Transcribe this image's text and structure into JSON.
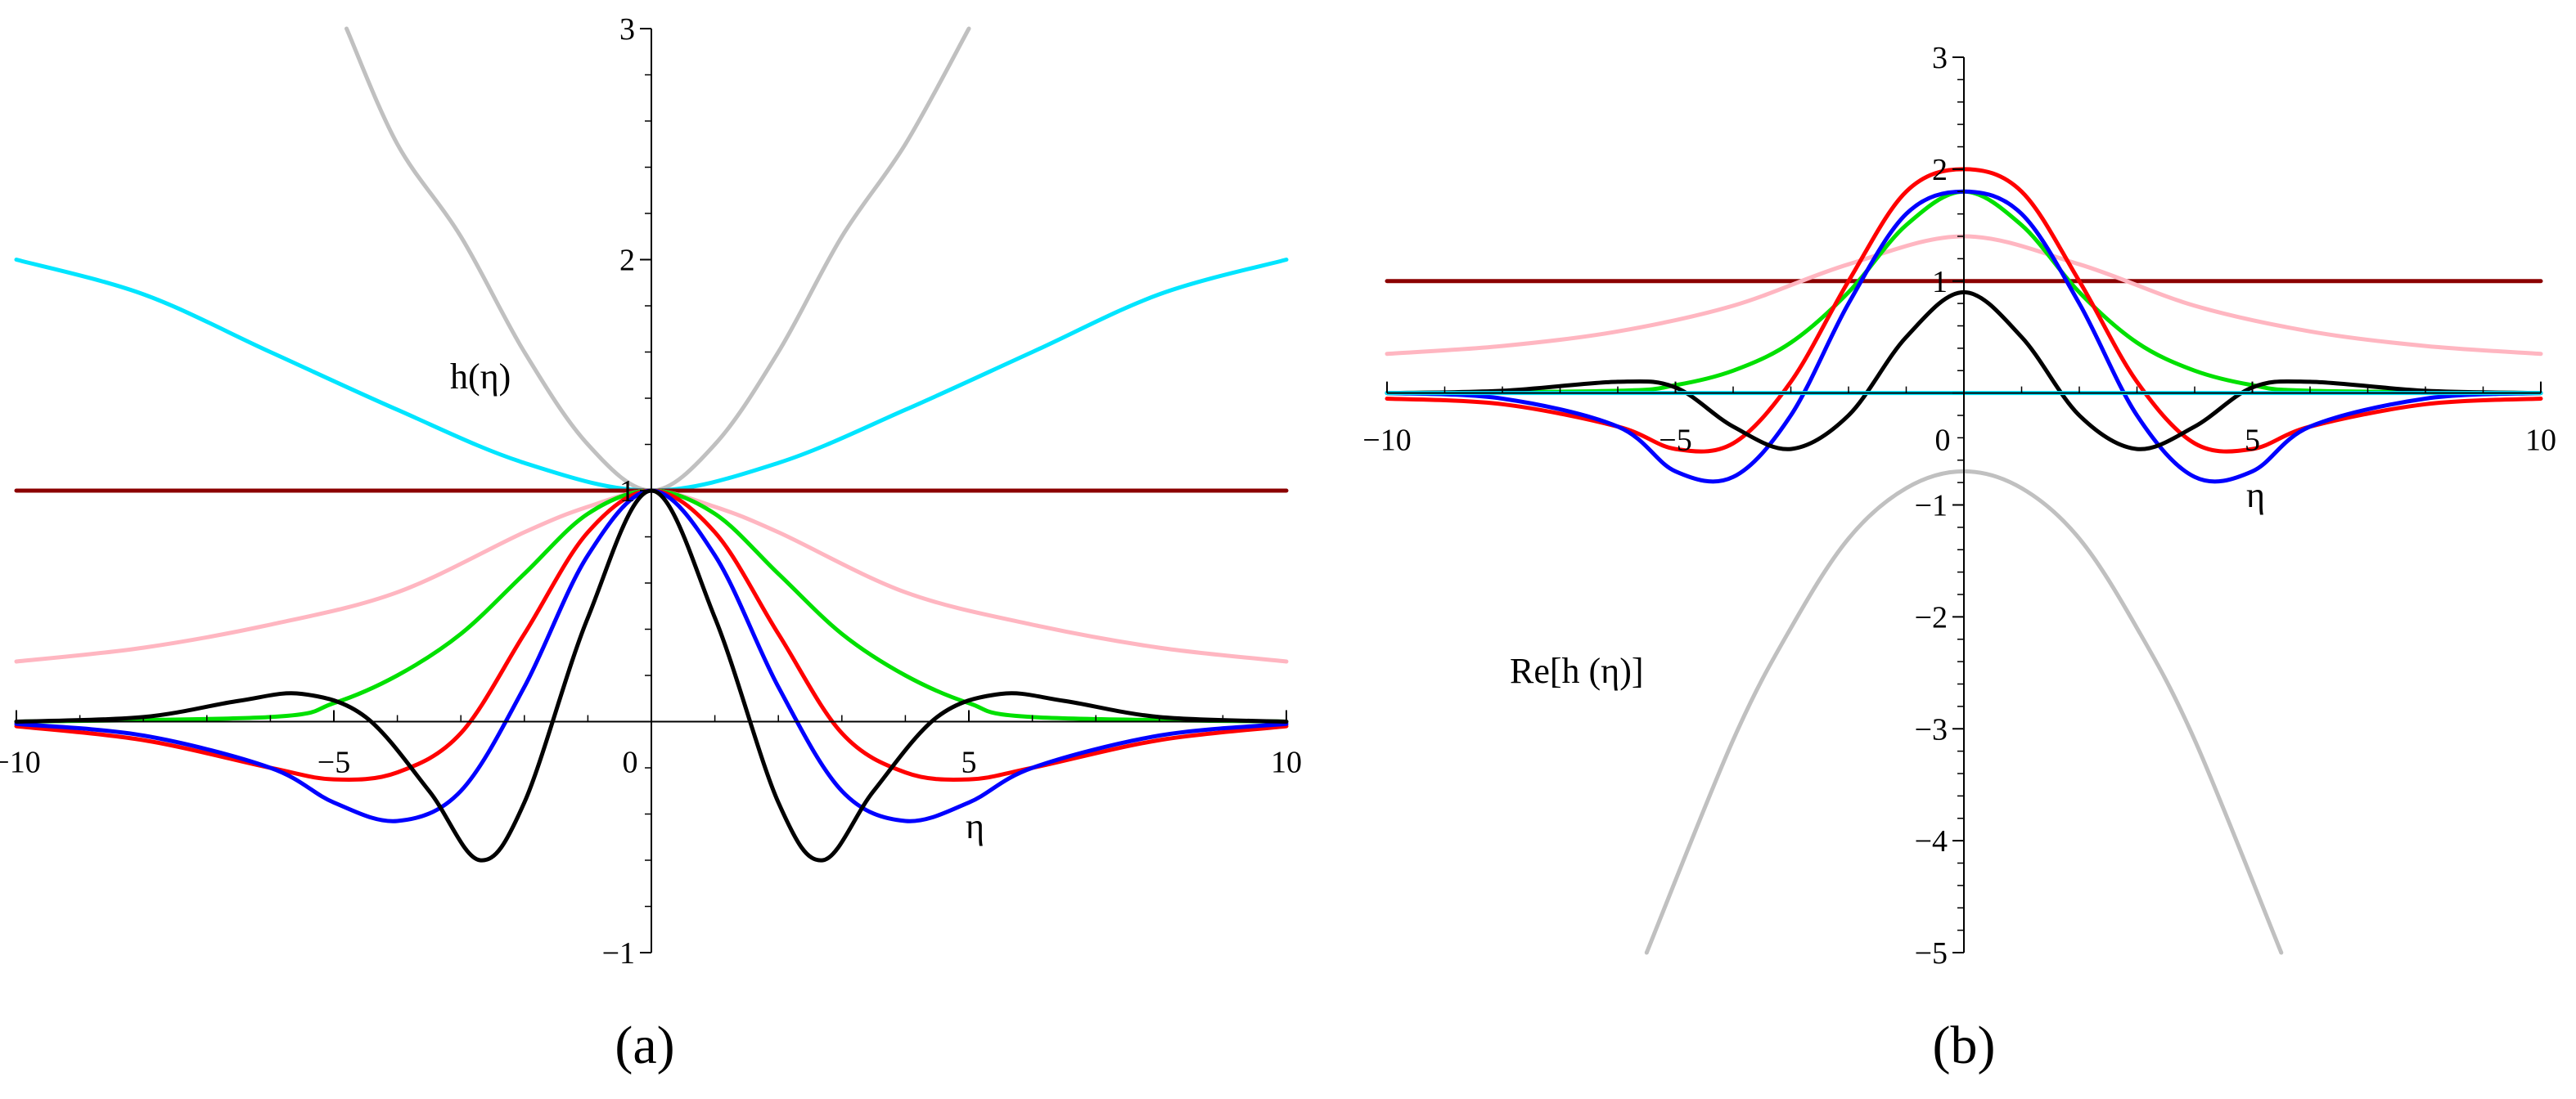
{
  "chart_data": [
    {
      "type": "line",
      "panel_label": "(a)",
      "ylabel": "h(η)",
      "xlabel": "η",
      "xlim": [
        -10,
        10
      ],
      "ylim": [
        -1,
        3
      ],
      "x_ticks": [
        -10,
        -5,
        0,
        5,
        10
      ],
      "x_tick_labels": [
        "−10",
        "−5",
        "0",
        "5",
        "10"
      ],
      "y_ticks": [
        -1,
        1,
        2,
        3
      ],
      "y_tick_labels": [
        "−1",
        "1",
        "2",
        "3"
      ],
      "series": [
        {
          "color": "#c0c0c0",
          "x": [
            -4.8,
            -4,
            -3,
            -2,
            -1,
            0,
            1,
            2,
            3,
            4,
            5.0
          ],
          "y": [
            3.0,
            2.5,
            2.1,
            1.6,
            1.2,
            1.0,
            1.2,
            1.6,
            2.1,
            2.5,
            3.0
          ]
        },
        {
          "color": "#00e5ff",
          "x": [
            -10,
            -8,
            -6,
            -4,
            -2,
            0,
            2,
            4,
            6,
            8,
            10
          ],
          "y": [
            2.0,
            1.85,
            1.6,
            1.35,
            1.12,
            1.0,
            1.12,
            1.35,
            1.6,
            1.85,
            2.0
          ]
        },
        {
          "color": "#8b0000",
          "x": [
            -10,
            10
          ],
          "y": [
            1.0,
            1.0
          ]
        },
        {
          "color": "#ffb6c1",
          "x": [
            -10,
            -8,
            -6,
            -4,
            -2,
            -1,
            0,
            1,
            2,
            4,
            6,
            8,
            10
          ],
          "y": [
            0.26,
            0.32,
            0.42,
            0.56,
            0.82,
            0.93,
            1.0,
            0.93,
            0.82,
            0.56,
            0.42,
            0.32,
            0.26
          ]
        },
        {
          "color": "#00e000",
          "x": [
            -10,
            -6,
            -5,
            -4,
            -3,
            -2,
            -1,
            0,
            1,
            2,
            3,
            4,
            5,
            6,
            10
          ],
          "y": [
            0.0,
            0.02,
            0.08,
            0.2,
            0.38,
            0.64,
            0.9,
            1.0,
            0.9,
            0.64,
            0.38,
            0.2,
            0.08,
            0.02,
            0.0
          ]
        },
        {
          "color": "#ff0000",
          "x": [
            -10,
            -8,
            -6,
            -5,
            -4,
            -3,
            -2,
            -1,
            0,
            1,
            2,
            3,
            4,
            5,
            6,
            8,
            10
          ],
          "y": [
            -0.02,
            -0.08,
            -0.2,
            -0.25,
            -0.22,
            -0.05,
            0.38,
            0.82,
            1.0,
            0.82,
            0.38,
            -0.05,
            -0.22,
            -0.25,
            -0.2,
            -0.08,
            -0.02
          ]
        },
        {
          "color": "#0000ff",
          "x": [
            -10,
            -8,
            -6,
            -5,
            -4,
            -3,
            -2,
            -1,
            0,
            1,
            2,
            3,
            4,
            5,
            6,
            8,
            10
          ],
          "y": [
            -0.01,
            -0.06,
            -0.2,
            -0.35,
            -0.43,
            -0.3,
            0.15,
            0.72,
            1.0,
            0.72,
            0.15,
            -0.3,
            -0.43,
            -0.35,
            -0.2,
            -0.06,
            -0.01
          ]
        },
        {
          "color": "#000000",
          "x": [
            -10,
            -8,
            -6.5,
            -5.5,
            -4.5,
            -3.5,
            -2.7,
            -2,
            -1,
            0,
            1,
            2,
            2.7,
            3.5,
            4.5,
            5.5,
            6.5,
            8,
            10
          ],
          "y": [
            0.0,
            0.02,
            0.09,
            0.12,
            0.02,
            -0.3,
            -0.6,
            -0.35,
            0.45,
            1.0,
            0.45,
            -0.35,
            -0.6,
            -0.3,
            0.02,
            0.12,
            0.09,
            0.02,
            0.0
          ]
        }
      ]
    },
    {
      "type": "line",
      "panel_label": "(b)",
      "ylabel": "Re[h (η)]",
      "xlabel": "η",
      "xlim": [
        -10,
        10
      ],
      "ylim": [
        -5,
        3
      ],
      "x_ticks": [
        -10,
        -5,
        0,
        5,
        10
      ],
      "x_tick_labels": [
        "−10",
        "−5",
        "0",
        "5",
        "10"
      ],
      "y_ticks": [
        -5,
        -4,
        -3,
        -2,
        -1,
        1,
        2,
        3
      ],
      "y_tick_labels": [
        "−5",
        "−4",
        "−3",
        "−2",
        "−1",
        "1",
        "2",
        "3"
      ],
      "series": [
        {
          "color": "#c0c0c0",
          "x": [
            -5.5,
            -4,
            -3,
            -2,
            -1,
            0,
            1,
            2,
            3,
            4,
            5.5
          ],
          "y": [
            -5.0,
            -3.1,
            -2.1,
            -1.3,
            -0.85,
            -0.7,
            -0.85,
            -1.3,
            -2.1,
            -3.1,
            -5.0
          ]
        },
        {
          "color": "#8b0000",
          "x": [
            -10,
            10
          ],
          "y": [
            1.0,
            1.0
          ]
        },
        {
          "color": "#ffb6c1",
          "x": [
            -10,
            -8,
            -6,
            -4,
            -2,
            0,
            2,
            4,
            6,
            8,
            10
          ],
          "y": [
            0.35,
            0.42,
            0.55,
            0.78,
            1.15,
            1.4,
            1.15,
            0.78,
            0.55,
            0.42,
            0.35
          ]
        },
        {
          "color": "#00e000",
          "x": [
            -10,
            -6,
            -5,
            -4,
            -3,
            -2,
            -1,
            0,
            1,
            2,
            3,
            4,
            5,
            6,
            10
          ],
          "y": [
            0.0,
            0.02,
            0.07,
            0.2,
            0.45,
            0.9,
            1.5,
            1.8,
            1.5,
            0.9,
            0.45,
            0.2,
            0.07,
            0.02,
            0.0
          ]
        },
        {
          "color": "#ff0000",
          "x": [
            -10,
            -8,
            -6,
            -5,
            -4,
            -3,
            -2,
            -1,
            0,
            1,
            2,
            3,
            4,
            5,
            6,
            8,
            10
          ],
          "y": [
            -0.05,
            -0.1,
            -0.3,
            -0.5,
            -0.45,
            0.1,
            1.0,
            1.8,
            2.0,
            1.8,
            1.0,
            0.1,
            -0.45,
            -0.5,
            -0.3,
            -0.1,
            -0.05
          ]
        },
        {
          "color": "#0000ff",
          "x": [
            -10,
            -8,
            -6,
            -5,
            -4,
            -3,
            -2,
            -1,
            0,
            1,
            2,
            3,
            4,
            5,
            6,
            8,
            10
          ],
          "y": [
            0.0,
            -0.05,
            -0.3,
            -0.7,
            -0.75,
            -0.2,
            0.8,
            1.6,
            1.8,
            1.6,
            0.8,
            -0.2,
            -0.75,
            -0.7,
            -0.3,
            -0.05,
            0.0
          ]
        },
        {
          "color": "#000000",
          "x": [
            -10,
            -8,
            -6,
            -5,
            -4,
            -3,
            -2,
            -1,
            0,
            1,
            2,
            3,
            4,
            5,
            6,
            8,
            10
          ],
          "y": [
            0.0,
            0.02,
            0.1,
            0.05,
            -0.3,
            -0.5,
            -0.2,
            0.5,
            0.9,
            0.5,
            -0.2,
            -0.5,
            -0.3,
            0.05,
            0.1,
            0.02,
            0.0
          ]
        },
        {
          "color": "#00e5ff",
          "x": [
            -10,
            10
          ],
          "y": [
            0.0,
            0.0
          ]
        }
      ]
    }
  ]
}
